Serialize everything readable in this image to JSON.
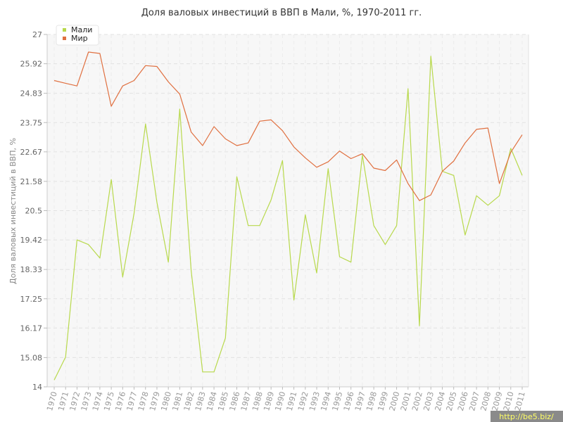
{
  "chart_data": {
    "type": "line",
    "title": "Доля валовых инвестиций в ВВП в Мали, %, 1970-2011 гг.",
    "xlabel": "",
    "ylabel": "Доля валовых инвестиций в ВВП, %",
    "ylim": [
      14,
      27
    ],
    "yticks": [
      "14",
      "15.08",
      "16.17",
      "17.25",
      "18.33",
      "19.42",
      "20.5",
      "21.58",
      "22.67",
      "23.75",
      "24.83",
      "25.92",
      "27"
    ],
    "x": [
      "1970",
      "1971",
      "1972",
      "1973",
      "1974",
      "1975",
      "1976",
      "1977",
      "1978",
      "1979",
      "1980",
      "1981",
      "1982",
      "1983",
      "1984",
      "1985",
      "1986",
      "1987",
      "1988",
      "1989",
      "1990",
      "1991",
      "1992",
      "1993",
      "1994",
      "1995",
      "1996",
      "1997",
      "1998",
      "1999",
      "2000",
      "2001",
      "2002",
      "2003",
      "2004",
      "2005",
      "2006",
      "2007",
      "2008",
      "2009",
      "2010",
      "2011"
    ],
    "grid": true,
    "legend_position": "top-left",
    "series": [
      {
        "name": "Мали",
        "color": "#b8d94c",
        "values": [
          14.25,
          15.1,
          19.42,
          19.25,
          18.75,
          21.65,
          18.05,
          20.4,
          23.7,
          20.8,
          18.6,
          24.25,
          18.3,
          14.55,
          14.55,
          15.8,
          21.75,
          19.95,
          19.95,
          20.9,
          22.35,
          17.2,
          20.35,
          18.2,
          22.05,
          18.8,
          18.6,
          22.55,
          19.95,
          19.25,
          19.95,
          25.0,
          16.25,
          26.2,
          21.95,
          21.8,
          19.6,
          21.05,
          20.7,
          21.05,
          22.8,
          21.8
        ]
      },
      {
        "name": "Мир",
        "color": "#e07040",
        "values": [
          25.3,
          25.2,
          25.1,
          26.35,
          26.3,
          24.35,
          25.1,
          25.3,
          25.85,
          25.82,
          25.25,
          24.8,
          23.4,
          22.9,
          23.6,
          23.15,
          22.9,
          23.0,
          23.8,
          23.85,
          23.45,
          22.85,
          22.45,
          22.1,
          22.3,
          22.7,
          22.42,
          22.6,
          22.07,
          21.98,
          22.37,
          21.5,
          20.87,
          21.08,
          21.95,
          22.33,
          23.0,
          23.5,
          23.55,
          21.5,
          22.65,
          23.3
        ]
      }
    ]
  },
  "watermark": "http://be5.biz/"
}
